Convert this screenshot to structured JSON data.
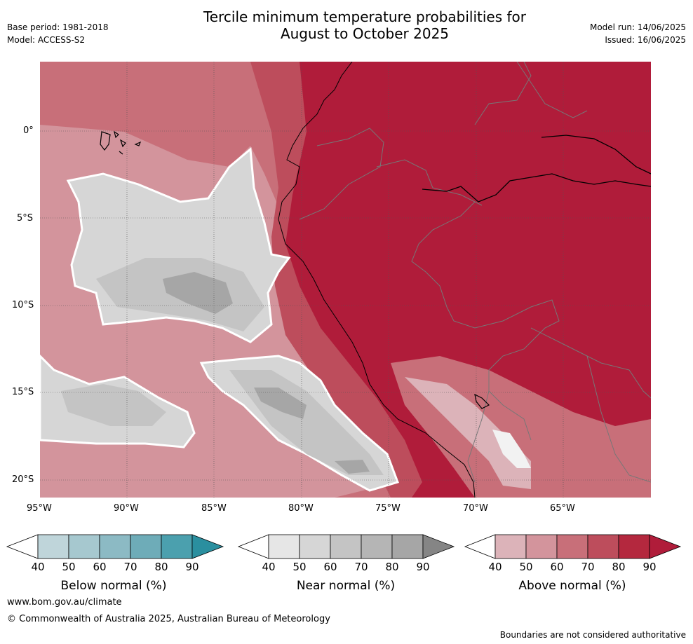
{
  "header": {
    "title_line1": "Tercile minimum temperature probabilities for",
    "title_line2": "August to October 2025",
    "base_period": "Base period: 1981-2018",
    "model": "Model: ACCESS-S2",
    "model_run": "Model run: 14/06/2025",
    "issued": "Issued: 16/06/2025"
  },
  "axes": {
    "lon_ticks": [
      "95°W",
      "90°W",
      "85°W",
      "80°W",
      "75°W",
      "70°W",
      "65°W"
    ],
    "lat_ticks": [
      "0°",
      "5°S",
      "10°S",
      "15°S",
      "20°S"
    ]
  },
  "legend": {
    "below": {
      "label": "Below normal (%)",
      "ticks": [
        "40",
        "50",
        "60",
        "70",
        "80",
        "90"
      ],
      "colors": [
        "#ffffff",
        "#bfd5da",
        "#a6c8cf",
        "#8cbac4",
        "#6eacb8",
        "#4ba0ae",
        "#2a8f9f"
      ]
    },
    "near": {
      "label": "Near normal (%)",
      "ticks": [
        "40",
        "50",
        "60",
        "70",
        "80",
        "90"
      ],
      "colors": [
        "#ffffff",
        "#e6e6e6",
        "#d6d6d6",
        "#c4c4c4",
        "#b5b5b5",
        "#a6a6a6",
        "#858585"
      ]
    },
    "above": {
      "label": "Above normal (%)",
      "ticks": [
        "40",
        "50",
        "60",
        "70",
        "80",
        "90"
      ],
      "colors": [
        "#ffffff",
        "#dcb3b9",
        "#d3949c",
        "#c86f79",
        "#bd4d5c",
        "#b4283e",
        "#b01c3a"
      ]
    }
  },
  "footer": {
    "website": "www.bom.gov.au/climate",
    "copyright": "© Commonwealth of Australia 2025, Australian Bureau of Meteorology",
    "disclaimer": "Boundaries are not considered authoritative"
  }
}
